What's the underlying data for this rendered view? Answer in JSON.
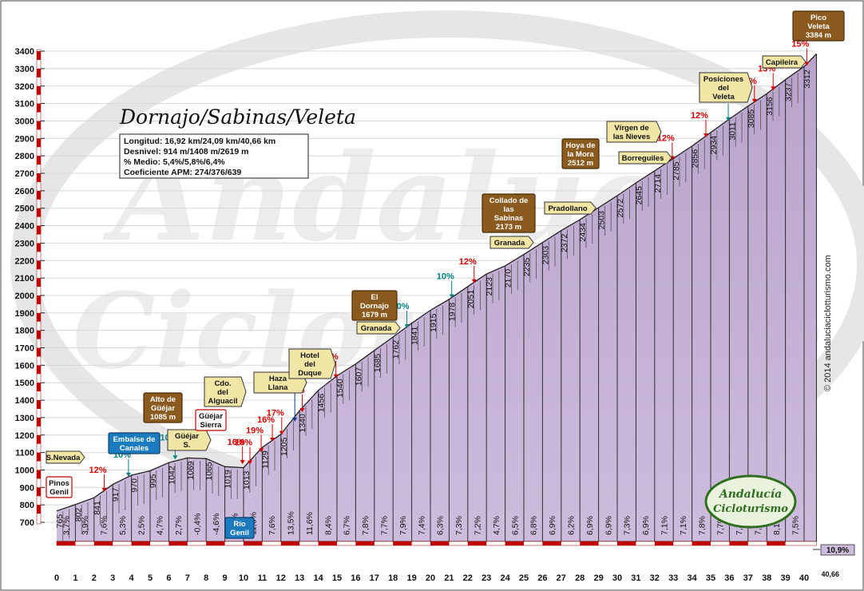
{
  "chart_data": {
    "type": "area",
    "title": "Dornajo/Sabinas/Veleta",
    "stats": [
      "Longitud: 16,92 km/24,09 km/40,66 km",
      "Desnivel: 914 m/1408 m/2619 m",
      "% Medio: 5,4%/5,8%/6,4%",
      "Coeficiente APM: 274/376/639"
    ],
    "copyright": "© 2014 andaluciaciclotturismo.com",
    "ylim": [
      700,
      3400
    ],
    "yticks": [
      700,
      800,
      900,
      1000,
      1100,
      1200,
      1300,
      1400,
      1500,
      1600,
      1700,
      1800,
      1900,
      2000,
      2100,
      2200,
      2300,
      2400,
      2500,
      2600,
      2700,
      2800,
      2900,
      3000,
      3100,
      3200,
      3300,
      3400
    ],
    "xlim": [
      0,
      40.66
    ],
    "xticks": [
      "0",
      "1",
      "2",
      "3",
      "4",
      "5",
      "6",
      "7",
      "8",
      "9",
      "10",
      "11",
      "12",
      "13",
      "14",
      "15",
      "16",
      "17",
      "18",
      "19",
      "20",
      "21",
      "22",
      "23",
      "24",
      "25",
      "26",
      "27",
      "28",
      "29",
      "30",
      "31",
      "32",
      "33",
      "34",
      "35",
      "36",
      "37",
      "38",
      "39",
      "40"
    ],
    "x_end_label": "40,66",
    "profile_km": [
      0,
      1,
      2,
      3,
      4,
      5,
      6,
      7,
      8,
      9,
      10,
      11,
      12,
      13,
      14,
      15,
      16,
      17,
      18,
      19,
      20,
      21,
      22,
      23,
      24,
      25,
      26,
      27,
      28,
      29,
      30,
      31,
      32,
      33,
      34,
      35,
      36,
      37,
      38,
      39,
      40,
      40.66
    ],
    "profile_alt": [
      765,
      802,
      841,
      917,
      970,
      995,
      1042,
      1069,
      1065,
      1019,
      1013,
      1129,
      1205,
      1340,
      1456,
      1540,
      1607,
      1685,
      1762,
      1841,
      1915,
      1978,
      2051,
      2123,
      2170,
      2235,
      2303,
      2372,
      2434,
      2503,
      2572,
      2645,
      2714,
      2785,
      2856,
      2934,
      3011,
      3085,
      3156,
      3237,
      3312,
      3384
    ],
    "alt_labels": [
      "765",
      "802",
      "841",
      "917",
      "970",
      "995",
      "1042",
      "1069",
      "1065",
      "1019",
      "1013",
      "1129",
      "1205",
      "1340",
      "1456",
      "1540",
      "1607",
      "1685",
      "1762",
      "1841",
      "1915",
      "1978",
      "2051",
      "2123",
      "2170",
      "2235",
      "2303",
      "2372",
      "2434",
      "2503",
      "2572",
      "2645",
      "2714",
      "2785",
      "2856",
      "2934",
      "3011",
      "3085",
      "3156",
      "3237",
      "3312"
    ],
    "grades": [
      "3,7%",
      "3,9%",
      "7,6%",
      "5,3%",
      "2,5%",
      "4,7%",
      "2,7%",
      "-0,4%",
      "-4,6%",
      "-0,6%",
      "11,6%",
      "7,6%",
      "13,5%",
      "11,6%",
      "8,4%",
      "6,7%",
      "7,8%",
      "7,7%",
      "7,9%",
      "7,4%",
      "6,3%",
      "7,3%",
      "7,2%",
      "4,7%",
      "6,5%",
      "6,8%",
      "6,9%",
      "6,2%",
      "6,9%",
      "6,9%",
      "7,3%",
      "6,9%",
      "7,1%",
      "7,1%",
      "7,8%",
      "7,7%",
      "7,4%",
      "7,1%",
      "8,1%",
      "7,5%",
      "10,9%"
    ],
    "ramps": [
      {
        "km": 2.2,
        "label": "12%",
        "color": "#d40000"
      },
      {
        "km": 3.5,
        "label": "10%",
        "color": "#008080"
      },
      {
        "km": 6.0,
        "label": "10%",
        "color": "#008080"
      },
      {
        "km": 9.6,
        "label": "16%",
        "color": "#d40000"
      },
      {
        "km": 10.0,
        "label": "18%",
        "color": "#d40000"
      },
      {
        "km": 10.6,
        "label": "19%",
        "color": "#d40000"
      },
      {
        "km": 11.2,
        "label": "16%",
        "color": "#d40000"
      },
      {
        "km": 11.7,
        "label": "17%",
        "color": "#d40000"
      },
      {
        "km": 12.8,
        "label": "17%",
        "color": "#d40000"
      },
      {
        "km": 12.4,
        "label": "20%",
        "color": "#0a3d91"
      },
      {
        "km": 14.6,
        "label": "16%",
        "color": "#d40000"
      },
      {
        "km": 18.4,
        "label": "10%",
        "color": "#008080"
      },
      {
        "km": 20.8,
        "label": "10%",
        "color": "#008080"
      },
      {
        "km": 22.0,
        "label": "12%",
        "color": "#d40000"
      },
      {
        "km": 32.6,
        "label": "12%",
        "color": "#d40000"
      },
      {
        "km": 34.4,
        "label": "12%",
        "color": "#d40000"
      },
      {
        "km": 35.6,
        "label": "10%",
        "color": "#008080"
      },
      {
        "km": 37.0,
        "label": "12%",
        "color": "#d40000"
      },
      {
        "km": 38.0,
        "label": "13%",
        "color": "#d40000"
      },
      {
        "km": 39.8,
        "label": "15%",
        "color": "#d40000"
      }
    ],
    "places": [
      {
        "text": "S.Nevada",
        "style": "dir"
      },
      {
        "text": "Pinos Genil",
        "style": "red"
      },
      {
        "text": "Embalse de Canales",
        "style": "blue"
      },
      {
        "text": "Alto de Güéjar 1085 m",
        "style": "brown"
      },
      {
        "text": "Güéjar S.",
        "style": "dir"
      },
      {
        "text": "Cdo. del Alguacil",
        "style": "dir"
      },
      {
        "text": "Güéjar Sierra",
        "style": "red"
      },
      {
        "text": "Río Genil",
        "style": "blue"
      },
      {
        "text": "Haza Llana",
        "style": "dir"
      },
      {
        "text": "Hotel del Duque",
        "style": "dir"
      },
      {
        "text": "El Dornajo 1679 m",
        "style": "brown"
      },
      {
        "text": "Granada",
        "style": "dir"
      },
      {
        "text": "Collado de las Sabinas 2173 m",
        "style": "brown"
      },
      {
        "text": "Granada",
        "style": "dir"
      },
      {
        "text": "Pradollano",
        "style": "dir"
      },
      {
        "text": "Hoya de la Mora 2512 m",
        "style": "brown"
      },
      {
        "text": "Vírgen de las Nieves",
        "style": "dir"
      },
      {
        "text": "Borreguiles",
        "style": "dir"
      },
      {
        "text": "Posiciones del Veleta",
        "style": "dir"
      },
      {
        "text": "Capileira",
        "style": "dir"
      },
      {
        "text": "Pico Veleta 3384 m",
        "style": "brown"
      }
    ],
    "watermark": [
      "Andalucía",
      "Cicloturismo"
    ]
  }
}
